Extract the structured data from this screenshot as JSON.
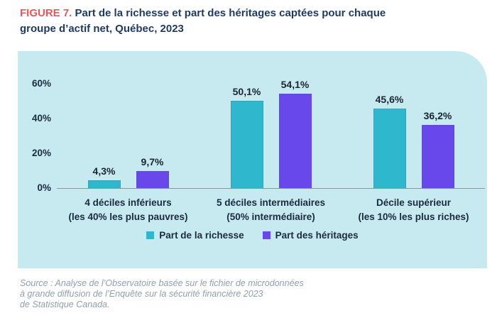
{
  "title": {
    "prefix": "FIGURE 7.",
    "text": "Part de la richesse et part des héritages captées pour chaque groupe d’actif net, Québec, 2023"
  },
  "source": {
    "lines": [
      "Source : Analyse de l’Observatoire basée sur le fichier de microdonnées",
      "à grande diffusion de l’Enquête sur la sécurité financière 2023",
      "de Statistique Canada."
    ]
  },
  "colors": {
    "panel_background": "#c7e9f0",
    "wealth_series": "#2fb7cd",
    "inheritance_series": "#6848ea",
    "figure_label_red": "#e2585b",
    "title_navy": "#1e3a5f",
    "axis_text": "#1a2b3d",
    "baseline_gray": "#8a979f",
    "source_gray": "#8fa0ac"
  },
  "chart_data": {
    "type": "bar",
    "title": "Part de la richesse et part des héritages captées pour chaque groupe d’actif net, Québec, 2023",
    "categories": [
      "4 déciles inférieurs",
      "5 déciles intermédiaires",
      "Décile supérieur"
    ],
    "category_sublabels": [
      "(les 40% les plus pauvres)",
      "(50% intermédiaire)",
      "(les 10% les plus riches)"
    ],
    "series": [
      {
        "name": "Part de la richesse",
        "color": "#2fb7cd",
        "values": [
          4.3,
          50.1,
          45.6
        ],
        "value_labels": [
          "4,3%",
          "50,1%",
          "45,6%"
        ]
      },
      {
        "name": "Part des héritages",
        "color": "#6848ea",
        "values": [
          9.7,
          54.1,
          36.2
        ],
        "value_labels": [
          "9,7%",
          "54,1%",
          "36,2%"
        ]
      }
    ],
    "y_axis": {
      "ticks": [
        0,
        20,
        40,
        60
      ],
      "tick_labels": [
        "0%",
        "20%",
        "40%",
        "60%"
      ],
      "ylim": [
        0,
        66.5
      ],
      "unit": "%"
    },
    "grid": false,
    "legend_position": "bottom"
  }
}
